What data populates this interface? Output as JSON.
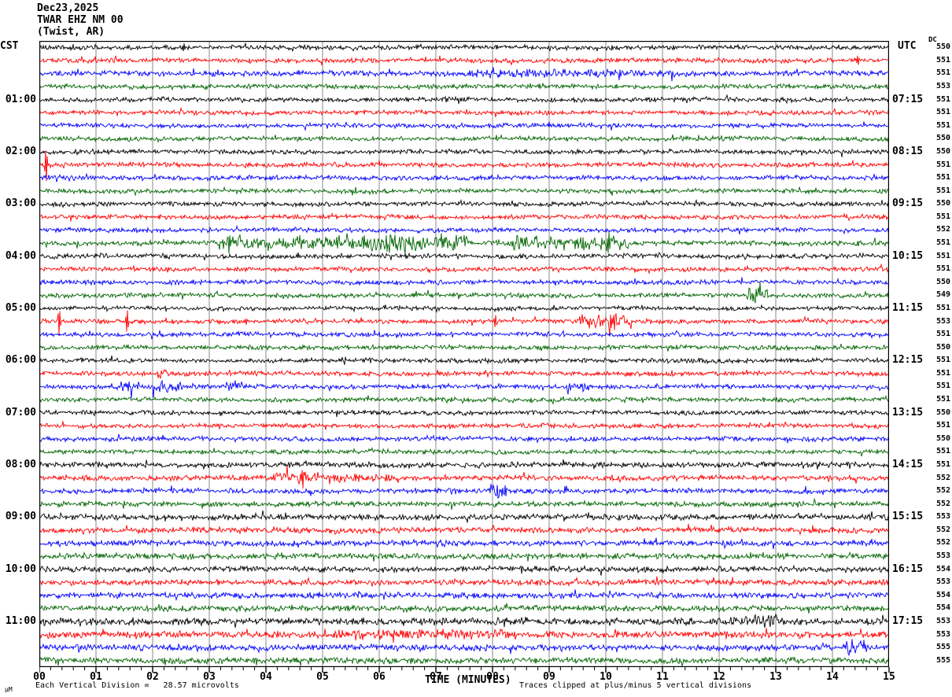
{
  "title": {
    "date": "Dec23,2025",
    "station": "TWAR EHZ NM 00",
    "location": "(Twist, AR)"
  },
  "left_axis_label": "CST",
  "right_axis_label": "UTC",
  "dc_header": "DC",
  "footer": {
    "each_division": "Each Vertical Division =   28.57 microvolts",
    "time_label": "TIME (MINUTES)",
    "clip_note": "Traces clipped at plus/minus 5 vertical divisions",
    "micro_mark": "µM"
  },
  "chart_data": {
    "type": "line",
    "subtype": "helicorder-seismogram",
    "title": "TWAR EHZ NM 00 (Twist, AR) Dec23,2025",
    "xlabel": "TIME (MINUTES)",
    "x_range": [
      0,
      15
    ],
    "x_ticks": [
      "00",
      "01",
      "02",
      "03",
      "04",
      "05",
      "06",
      "07",
      "08",
      "09",
      "10",
      "11",
      "12",
      "13",
      "14",
      "15"
    ],
    "x_minor_tick_interval": 0.2,
    "minutes_per_line": 15,
    "lines_per_hour": 4,
    "microvolts_per_division": 28.57,
    "clip_divisions": 5,
    "grid": "vertical-minute-lines",
    "trace_colors": {
      "pattern": [
        "black",
        "red",
        "blue",
        "green"
      ],
      "hex": {
        "black": "#000000",
        "red": "#ff0000",
        "blue": "#0000ff",
        "green": "#006400"
      }
    },
    "grid_color": "#888888",
    "rows": [
      {
        "cst": "",
        "utc": "",
        "dc": 550,
        "color": "black",
        "amp": 1.0
      },
      {
        "cst": "",
        "utc": "",
        "dc": 551,
        "color": "red",
        "amp": 1.0
      },
      {
        "cst": "",
        "utc": "",
        "dc": 551,
        "color": "blue",
        "amp": 1.15
      },
      {
        "cst": "",
        "utc": "",
        "dc": 553,
        "color": "green",
        "amp": 1.05
      },
      {
        "cst": "01:00",
        "utc": "07:15",
        "dc": 551,
        "color": "black",
        "amp": 1.0
      },
      {
        "cst": "",
        "utc": "",
        "dc": 551,
        "color": "red",
        "amp": 1.0
      },
      {
        "cst": "",
        "utc": "",
        "dc": 551,
        "color": "blue",
        "amp": 1.0
      },
      {
        "cst": "",
        "utc": "",
        "dc": 550,
        "color": "green",
        "amp": 1.0
      },
      {
        "cst": "02:00",
        "utc": "08:15",
        "dc": 550,
        "color": "black",
        "amp": 1.0
      },
      {
        "cst": "",
        "utc": "",
        "dc": 551,
        "color": "red",
        "amp": 1.0
      },
      {
        "cst": "",
        "utc": "",
        "dc": 551,
        "color": "blue",
        "amp": 1.0
      },
      {
        "cst": "",
        "utc": "",
        "dc": 551,
        "color": "green",
        "amp": 1.0
      },
      {
        "cst": "03:00",
        "utc": "09:15",
        "dc": 550,
        "color": "black",
        "amp": 1.0
      },
      {
        "cst": "",
        "utc": "",
        "dc": 551,
        "color": "red",
        "amp": 1.0
      },
      {
        "cst": "",
        "utc": "",
        "dc": 552,
        "color": "blue",
        "amp": 1.0
      },
      {
        "cst": "",
        "utc": "",
        "dc": 551,
        "color": "green",
        "amp": 1.1
      },
      {
        "cst": "04:00",
        "utc": "10:15",
        "dc": 551,
        "color": "black",
        "amp": 1.0
      },
      {
        "cst": "",
        "utc": "",
        "dc": 551,
        "color": "red",
        "amp": 1.0
      },
      {
        "cst": "",
        "utc": "",
        "dc": 550,
        "color": "blue",
        "amp": 1.0
      },
      {
        "cst": "",
        "utc": "",
        "dc": 549,
        "color": "green",
        "amp": 1.0
      },
      {
        "cst": "05:00",
        "utc": "11:15",
        "dc": 551,
        "color": "black",
        "amp": 0.9
      },
      {
        "cst": "",
        "utc": "",
        "dc": 553,
        "color": "red",
        "amp": 1.0
      },
      {
        "cst": "",
        "utc": "",
        "dc": 551,
        "color": "blue",
        "amp": 1.0
      },
      {
        "cst": "",
        "utc": "",
        "dc": 550,
        "color": "green",
        "amp": 1.0
      },
      {
        "cst": "06:00",
        "utc": "12:15",
        "dc": 551,
        "color": "black",
        "amp": 1.0
      },
      {
        "cst": "",
        "utc": "",
        "dc": 551,
        "color": "red",
        "amp": 1.0
      },
      {
        "cst": "",
        "utc": "",
        "dc": 551,
        "color": "blue",
        "amp": 1.0
      },
      {
        "cst": "",
        "utc": "",
        "dc": 551,
        "color": "green",
        "amp": 1.0
      },
      {
        "cst": "07:00",
        "utc": "13:15",
        "dc": 550,
        "color": "black",
        "amp": 1.0
      },
      {
        "cst": "",
        "utc": "",
        "dc": 551,
        "color": "red",
        "amp": 1.0
      },
      {
        "cst": "",
        "utc": "",
        "dc": 550,
        "color": "blue",
        "amp": 1.0
      },
      {
        "cst": "",
        "utc": "",
        "dc": 551,
        "color": "green",
        "amp": 1.0
      },
      {
        "cst": "08:00",
        "utc": "14:15",
        "dc": 551,
        "color": "black",
        "amp": 1.15
      },
      {
        "cst": "",
        "utc": "",
        "dc": 552,
        "color": "red",
        "amp": 1.15
      },
      {
        "cst": "",
        "utc": "",
        "dc": 552,
        "color": "blue",
        "amp": 1.1
      },
      {
        "cst": "",
        "utc": "",
        "dc": 552,
        "color": "green",
        "amp": 1.1
      },
      {
        "cst": "09:00",
        "utc": "15:15",
        "dc": 553,
        "color": "black",
        "amp": 1.25
      },
      {
        "cst": "",
        "utc": "",
        "dc": 552,
        "color": "red",
        "amp": 1.25
      },
      {
        "cst": "",
        "utc": "",
        "dc": 552,
        "color": "blue",
        "amp": 1.25
      },
      {
        "cst": "",
        "utc": "",
        "dc": 553,
        "color": "green",
        "amp": 1.25
      },
      {
        "cst": "10:00",
        "utc": "16:15",
        "dc": 554,
        "color": "black",
        "amp": 1.25
      },
      {
        "cst": "",
        "utc": "",
        "dc": 553,
        "color": "red",
        "amp": 1.25
      },
      {
        "cst": "",
        "utc": "",
        "dc": 554,
        "color": "blue",
        "amp": 1.25
      },
      {
        "cst": "",
        "utc": "",
        "dc": 554,
        "color": "green",
        "amp": 1.25
      },
      {
        "cst": "11:00",
        "utc": "17:15",
        "dc": 553,
        "color": "black",
        "amp": 1.6
      },
      {
        "cst": "",
        "utc": "",
        "dc": 553,
        "color": "red",
        "amp": 1.45
      },
      {
        "cst": "",
        "utc": "",
        "dc": 555,
        "color": "blue",
        "amp": 1.3
      },
      {
        "cst": "",
        "utc": "",
        "dc": 555,
        "color": "green",
        "amp": 1.3
      }
    ],
    "events": [
      {
        "row": 1,
        "type": "spike",
        "t": 2.55,
        "amp": 5
      },
      {
        "row": 2,
        "type": "spike",
        "t": 14.45,
        "amp": 6
      },
      {
        "row": 3,
        "type": "burst",
        "start": 7.5,
        "end": 11.3,
        "amp": 1.5
      },
      {
        "row": 10,
        "type": "spike",
        "t": 0.12,
        "amp": 20
      },
      {
        "row": 16,
        "type": "burst",
        "start": 3.15,
        "end": 7.6,
        "amp": 5
      },
      {
        "row": 16,
        "type": "burst",
        "start": 5.6,
        "end": 6.6,
        "amp": 3
      },
      {
        "row": 16,
        "type": "burst",
        "start": 8.3,
        "end": 10.4,
        "amp": 5
      },
      {
        "row": 16,
        "type": "spike",
        "t": 3.35,
        "amp": 12
      },
      {
        "row": 16,
        "type": "spike",
        "t": 10.05,
        "amp": 14
      },
      {
        "row": 20,
        "type": "burst",
        "start": 12.5,
        "end": 12.85,
        "amp": 8
      },
      {
        "row": 22,
        "type": "spike",
        "t": 0.35,
        "amp": 16
      },
      {
        "row": 22,
        "type": "spike",
        "t": 1.55,
        "amp": 14
      },
      {
        "row": 22,
        "type": "spike",
        "t": 3.65,
        "amp": 4
      },
      {
        "row": 22,
        "type": "spike",
        "t": 8.05,
        "amp": 8
      },
      {
        "row": 22,
        "type": "burst",
        "start": 9.5,
        "end": 9.95,
        "amp": 5
      },
      {
        "row": 22,
        "type": "burst",
        "start": 10.0,
        "end": 10.45,
        "amp": 7
      },
      {
        "row": 22,
        "type": "spike",
        "t": 10.15,
        "amp": 10
      },
      {
        "row": 26,
        "type": "burst",
        "start": 2.05,
        "end": 2.3,
        "amp": 3
      },
      {
        "row": 27,
        "type": "burst",
        "start": 1.35,
        "end": 1.75,
        "amp": 4
      },
      {
        "row": 27,
        "type": "burst",
        "start": 2.0,
        "end": 2.55,
        "amp": 4
      },
      {
        "row": 27,
        "type": "burst",
        "start": 3.3,
        "end": 3.65,
        "amp": 4
      },
      {
        "row": 27,
        "type": "burst",
        "start": 9.3,
        "end": 9.7,
        "amp": 3
      },
      {
        "row": 34,
        "type": "burst",
        "start": 4.1,
        "end": 5.0,
        "amp": 4
      },
      {
        "row": 34,
        "type": "spike",
        "t": 4.65,
        "amp": 12
      },
      {
        "row": 34,
        "type": "burst",
        "start": 5.0,
        "end": 6.2,
        "amp": 2
      },
      {
        "row": 35,
        "type": "burst",
        "start": 7.95,
        "end": 8.25,
        "amp": 5
      },
      {
        "row": 45,
        "type": "burst",
        "start": 12.2,
        "end": 13.1,
        "amp": 3
      },
      {
        "row": 46,
        "type": "burst",
        "start": 5.2,
        "end": 8.2,
        "amp": 2
      },
      {
        "row": 47,
        "type": "burst",
        "start": 14.25,
        "end": 14.65,
        "amp": 6
      }
    ]
  }
}
